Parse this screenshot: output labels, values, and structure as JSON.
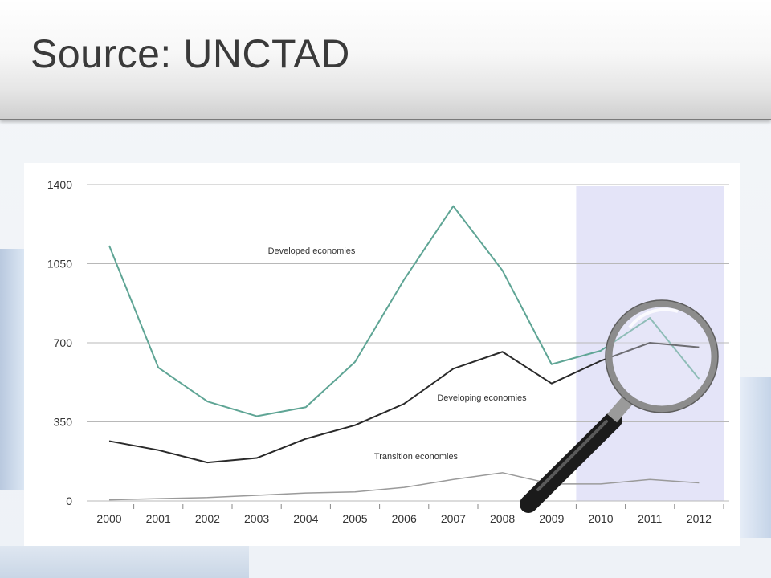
{
  "header": {
    "title": "Source: UNCTAD"
  },
  "colors": {
    "developed": "#5fa595",
    "developing": "#2a2a2a",
    "transition": "#9a9a9a",
    "highlight": "#e4e4f8",
    "grid": "#b8b8b8"
  },
  "icons": {
    "magnifier": "magnifier-icon"
  },
  "chart_data": {
    "type": "line",
    "title": "",
    "xlabel": "",
    "ylabel": "",
    "x": [
      "2000",
      "2001",
      "2002",
      "2003",
      "2004",
      "2005",
      "2006",
      "2007",
      "2008",
      "2009",
      "2010",
      "2011",
      "2012"
    ],
    "ylim": [
      0,
      1400
    ],
    "yticks": [
      "0",
      "350",
      "700",
      "1050",
      "1400"
    ],
    "grid": true,
    "highlight_range": [
      "2010",
      "2012"
    ],
    "series": [
      {
        "name": "Developed economies",
        "values": [
          1130,
          590,
          440,
          375,
          415,
          615,
          980,
          1305,
          1020,
          605,
          665,
          810,
          540
        ]
      },
      {
        "name": "Developing economies",
        "values": [
          265,
          225,
          170,
          190,
          275,
          335,
          430,
          585,
          660,
          520,
          620,
          700,
          680
        ]
      },
      {
        "name": "Transition economies",
        "values": [
          5,
          10,
          15,
          25,
          35,
          40,
          60,
          95,
          125,
          75,
          75,
          95,
          80
        ]
      }
    ]
  }
}
